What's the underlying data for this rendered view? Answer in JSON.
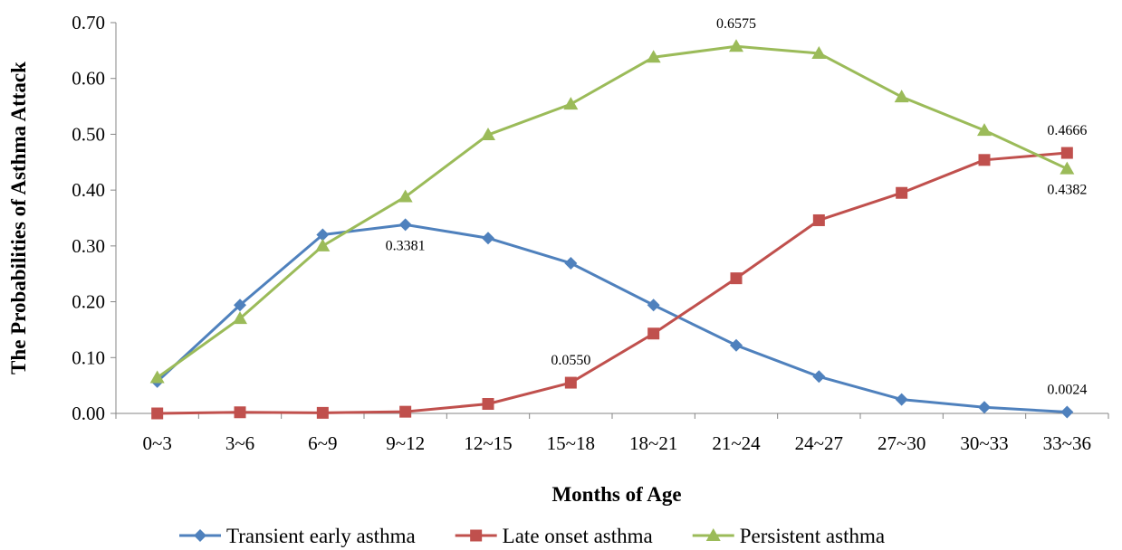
{
  "chart_data": {
    "type": "line",
    "xlabel": "Months of Age",
    "ylabel": "The Probabilities of Asthma Attack",
    "categories": [
      "0~3",
      "3~6",
      "6~9",
      "9~12",
      "12~15",
      "15~18",
      "18~21",
      "21~24",
      "24~27",
      "27~30",
      "30~33",
      "33~36"
    ],
    "ylim": [
      0,
      0.7
    ],
    "yticks": [
      "0.00",
      "0.10",
      "0.20",
      "0.30",
      "0.40",
      "0.50",
      "0.60",
      "0.70"
    ],
    "legend_position": "bottom",
    "grid": false,
    "series": [
      {
        "name": "Transient early asthma",
        "color": "#4F81BD",
        "marker": "diamond",
        "values": [
          0.057,
          0.194,
          0.32,
          0.3381,
          0.314,
          0.269,
          0.194,
          0.122,
          0.066,
          0.025,
          0.011,
          0.0024
        ]
      },
      {
        "name": "Late onset asthma",
        "color": "#C0504D",
        "marker": "square",
        "values": [
          0.0,
          0.002,
          0.001,
          0.003,
          0.017,
          0.055,
          0.143,
          0.242,
          0.346,
          0.395,
          0.454,
          0.4666
        ]
      },
      {
        "name": "Persistent asthma",
        "color": "#9BBB59",
        "marker": "triangle",
        "values": [
          0.064,
          0.17,
          0.3,
          0.388,
          0.499,
          0.554,
          0.638,
          0.6575,
          0.645,
          0.567,
          0.507,
          0.4382
        ]
      }
    ],
    "annotations": [
      {
        "series": 0,
        "index": 3,
        "text": "0.3381",
        "placement": "below"
      },
      {
        "series": 0,
        "index": 11,
        "text": "0.0024",
        "placement": "above"
      },
      {
        "series": 1,
        "index": 5,
        "text": "0.0550",
        "placement": "above"
      },
      {
        "series": 1,
        "index": 11,
        "text": "0.4666",
        "placement": "above"
      },
      {
        "series": 2,
        "index": 7,
        "text": "0.6575",
        "placement": "above"
      },
      {
        "series": 2,
        "index": 11,
        "text": "0.4382",
        "placement": "below"
      }
    ]
  }
}
